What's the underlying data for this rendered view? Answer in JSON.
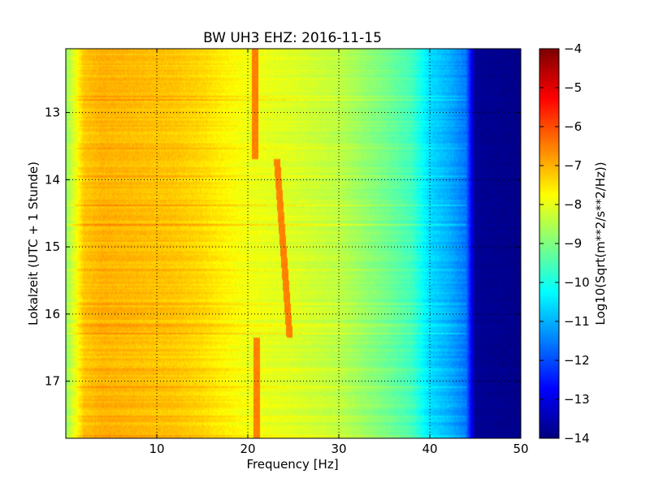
{
  "chart_data": {
    "type": "heatmap",
    "title": "BW UH3 EHZ: 2016-11-15",
    "xlabel": "Frequency [Hz]",
    "ylabel": "Lokalzeit (UTC + 1 Stunde)",
    "xlim": [
      0,
      50
    ],
    "ylim": [
      12.05,
      17.85
    ],
    "y_inverted": true,
    "x_ticks": [
      10,
      20,
      30,
      40,
      50
    ],
    "y_ticks": [
      13,
      14,
      15,
      16,
      17
    ],
    "grid": true,
    "colormap": "jet",
    "colorbar": {
      "label": "Log10(Sqrt(m**2/s**2/Hz))",
      "range": [
        -14,
        -4
      ],
      "ticks": [
        -4,
        -5,
        -6,
        -7,
        -8,
        -9,
        -10,
        -11,
        -12,
        -13,
        -14
      ]
    },
    "spectral_profile": {
      "frequency_hz": [
        0,
        1,
        2,
        4,
        8,
        12,
        15,
        18,
        20,
        25,
        30,
        35,
        38,
        40,
        42,
        44,
        45,
        50
      ],
      "log_amplitude": [
        -8.8,
        -8.0,
        -7.2,
        -7.0,
        -7.1,
        -7.2,
        -7.4,
        -7.7,
        -7.9,
        -8.1,
        -8.4,
        -9.1,
        -9.6,
        -10.6,
        -11.0,
        -11.6,
        -13.8,
        -13.9
      ]
    },
    "line_feature": {
      "segments": [
        {
          "from_time": 12.05,
          "to_time": 13.7,
          "frequency_hz": 20.8
        },
        {
          "from_time": 13.7,
          "to_time": 16.35,
          "frequency_hz_start": 23.2,
          "frequency_hz_end": 24.6
        },
        {
          "from_time": 16.35,
          "to_time": 17.85,
          "frequency_hz": 21.0
        }
      ],
      "log_amplitude": -6.5
    }
  }
}
